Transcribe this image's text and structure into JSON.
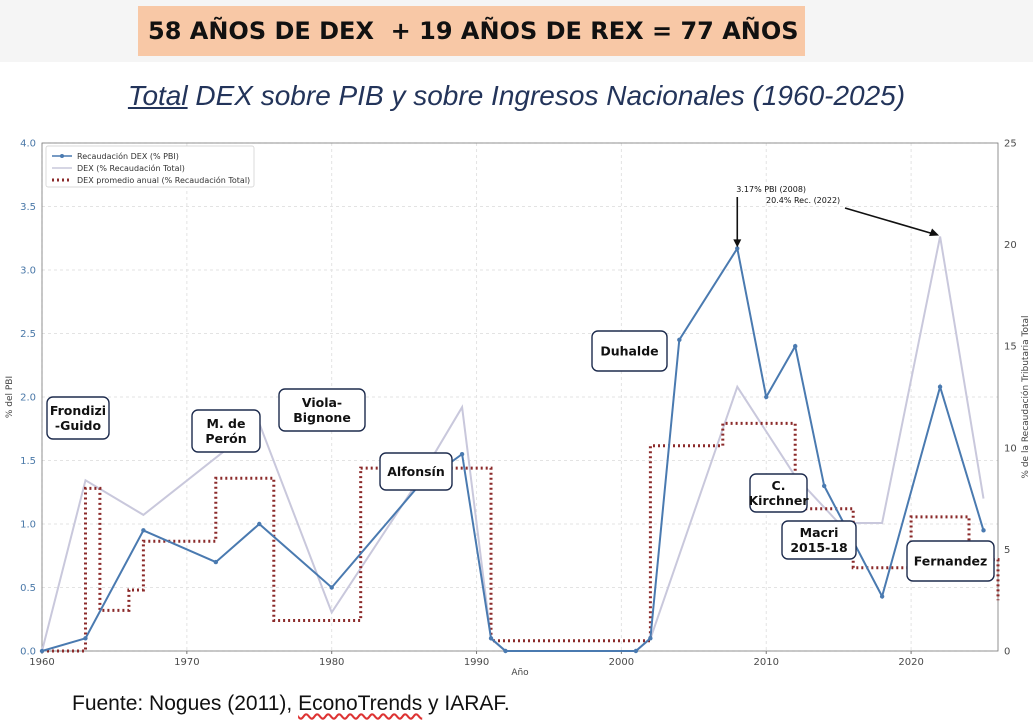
{
  "banner": "58 AÑOS DE DEX  + 19 AÑOS DE REX = 77 AÑOS",
  "chart_title": {
    "underlined": "Total",
    "rest": " DEX sobre PIB y sobre Ingresos Nacionales (1960-2025)"
  },
  "footer": {
    "before": "Fuente: Nogues (2011), ",
    "underlined": "EconoTrends",
    "after": " y IARAF."
  },
  "chart_data": {
    "type": "line",
    "xlabel": "Año",
    "ylabel_left": "% del PBI",
    "ylabel_right": "% de la Recaudación Tributaria Total",
    "xlim": [
      1960,
      2026
    ],
    "ylim_left": [
      0,
      4.0
    ],
    "ylim_right": [
      0,
      25
    ],
    "x_ticks": [
      1960,
      1970,
      1980,
      1990,
      2000,
      2010,
      2020
    ],
    "y_left_ticks": [
      "0.0",
      "0.5",
      "1.0",
      "1.5",
      "2.0",
      "2.5",
      "3.0",
      "3.5",
      "4.0"
    ],
    "y_right_ticks": [
      "0",
      "5",
      "10",
      "15",
      "20",
      "25"
    ],
    "grid": true,
    "legend_position": "top-left",
    "series": [
      {
        "name": "Recaudación DEX (% PBI)",
        "axis": "left",
        "style": "solid-markers",
        "color": "#4a7ab0",
        "x": [
          1960,
          1963,
          1967,
          1972,
          1975,
          1980,
          1986,
          1989,
          1991,
          1992,
          2001,
          2002,
          2004,
          2008,
          2010,
          2012,
          2014,
          2018,
          2022,
          2025
        ],
        "y": [
          0.0,
          0.1,
          0.95,
          0.7,
          1.0,
          0.5,
          1.3,
          1.55,
          0.1,
          0.0,
          0.0,
          0.1,
          2.45,
          3.17,
          2.0,
          2.4,
          1.3,
          0.43,
          2.08,
          0.95
        ]
      },
      {
        "name": "DEX (% Recaudación Total)",
        "axis": "right",
        "style": "solid",
        "color": "#c9c8dc",
        "x": [
          1960,
          1963,
          1967,
          1975,
          1980,
          1986,
          1989,
          1991,
          1992,
          2001,
          2002,
          2008,
          2012,
          2015,
          2018,
          2022,
          2025
        ],
        "y": [
          0.0,
          8.4,
          6.7,
          11.2,
          1.9,
          8.4,
          12.0,
          0.6,
          0.0,
          0.0,
          0.6,
          13.0,
          8.6,
          6.3,
          6.3,
          20.4,
          7.5
        ]
      },
      {
        "name": "DEX promedio anual (% Recaudación Total)",
        "axis": "right",
        "style": "dotted-step",
        "color": "#8b2a2a",
        "x": [
          1960,
          1963,
          1964,
          1966,
          1967,
          1972,
          1976,
          1982,
          1991,
          2002,
          2007,
          2012,
          2016,
          2020,
          2024,
          2026
        ],
        "y": [
          0.0,
          8.0,
          2.0,
          3.0,
          5.4,
          8.5,
          1.5,
          9.0,
          0.5,
          10.1,
          11.2,
          7.0,
          4.1,
          6.6,
          4.5,
          2.5
        ]
      }
    ],
    "annotations": [
      {
        "text": "3.17% PBI (2008)",
        "x": 2008,
        "y": 3.17,
        "axis": "left"
      },
      {
        "text": "20.4% Rec. (2022)",
        "x": 2022,
        "y": 20.4,
        "axis": "right"
      }
    ]
  },
  "presidents": [
    "Frondizi -Guido",
    "M. de Perón",
    "Viola- Bignone",
    "Alfonsín",
    "Duhalde",
    "C. Kirchner",
    "Macri 2015-18",
    "Fernandez"
  ],
  "president_lines": [
    [
      "Frondizi",
      "-Guido"
    ],
    [
      "M. de",
      "Perón"
    ],
    [
      "Viola-",
      "Bignone"
    ],
    [
      "Alfonsín"
    ],
    [
      "Duhalde"
    ],
    [
      "C.",
      "Kirchner"
    ],
    [
      "Macri",
      "2015-18"
    ],
    [
      "Fernandez"
    ]
  ]
}
